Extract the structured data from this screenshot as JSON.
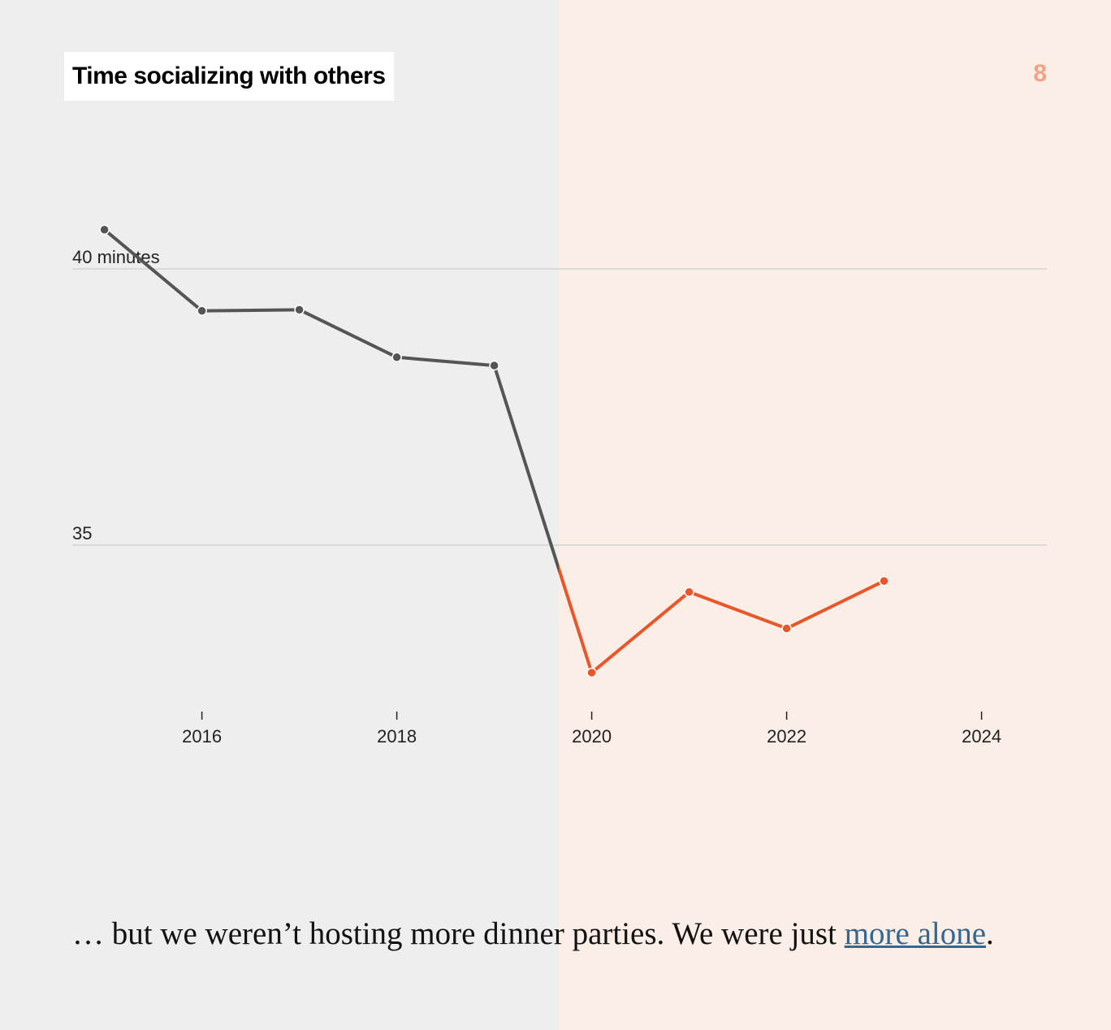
{
  "chart_data": {
    "type": "line",
    "title": "Time socializing with others",
    "x": [
      2015,
      2016,
      2017,
      2018,
      2019,
      2020,
      2021,
      2022,
      2023
    ],
    "values": [
      40.71,
      39.24,
      39.26,
      38.4,
      38.25,
      32.69,
      34.15,
      33.49,
      34.35
    ],
    "color": "#555555",
    "highlight_color": "#e8562a",
    "xlim": [
      2014.67,
      2024.67
    ],
    "xticks": [
      2016,
      2018,
      2020,
      2022,
      2024
    ],
    "ylim": [
      32,
      42.5
    ],
    "yticks": [
      {
        "value": 40,
        "label": "40 minutes"
      },
      35
    ],
    "grid": true
  },
  "step": "8",
  "caption": {
    "text": "… but we weren’t hosting more dinner parties. We were just ",
    "link": "more alone",
    "end": "."
  }
}
